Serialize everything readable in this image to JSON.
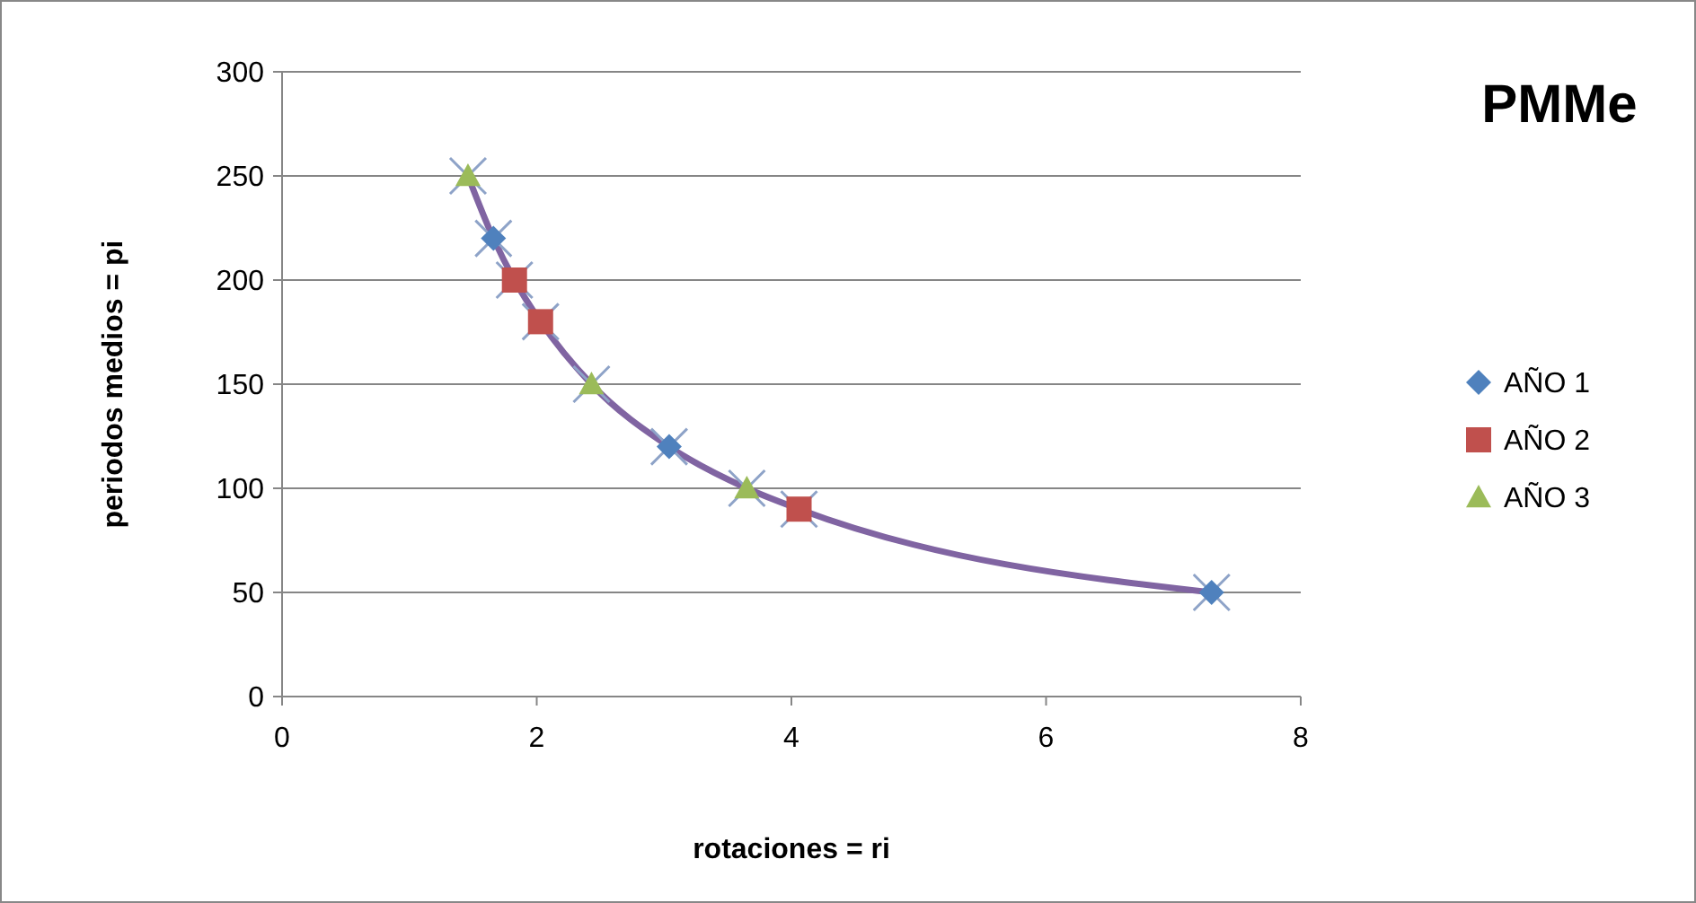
{
  "chart_data": {
    "type": "scatter",
    "title": "PMMe",
    "xlabel": "rotaciones = ri",
    "ylabel": "periodos medios = pi",
    "xlim": [
      0,
      8
    ],
    "xticks": [
      0,
      2,
      4,
      6,
      8
    ],
    "ylim": [
      0,
      300
    ],
    "yticks": [
      0,
      50,
      100,
      150,
      200,
      250,
      300
    ],
    "grid": "y",
    "legend": "right",
    "series": [
      {
        "type": "line",
        "color": "#8064a2",
        "marker": "cross",
        "x": [
          1.46,
          1.66,
          1.825,
          2.03,
          2.43,
          3.04,
          3.65,
          4.06,
          7.3
        ],
        "values": [
          250,
          220,
          200,
          180,
          150,
          120,
          100,
          90,
          50
        ]
      },
      {
        "name": "AÑO 1",
        "color": "#4f81bd",
        "marker": "diamond",
        "x": [
          1.66,
          3.04,
          7.3
        ],
        "values": [
          220,
          120,
          50
        ]
      },
      {
        "name": "AÑO 2",
        "color": "#c0504d",
        "marker": "square",
        "x": [
          1.825,
          2.03,
          4.06
        ],
        "values": [
          200,
          180,
          90
        ]
      },
      {
        "name": "AÑO 3",
        "color": "#9bbb59",
        "marker": "triangle",
        "x": [
          1.46,
          2.43,
          3.65
        ],
        "values": [
          250,
          150,
          100
        ]
      }
    ]
  }
}
